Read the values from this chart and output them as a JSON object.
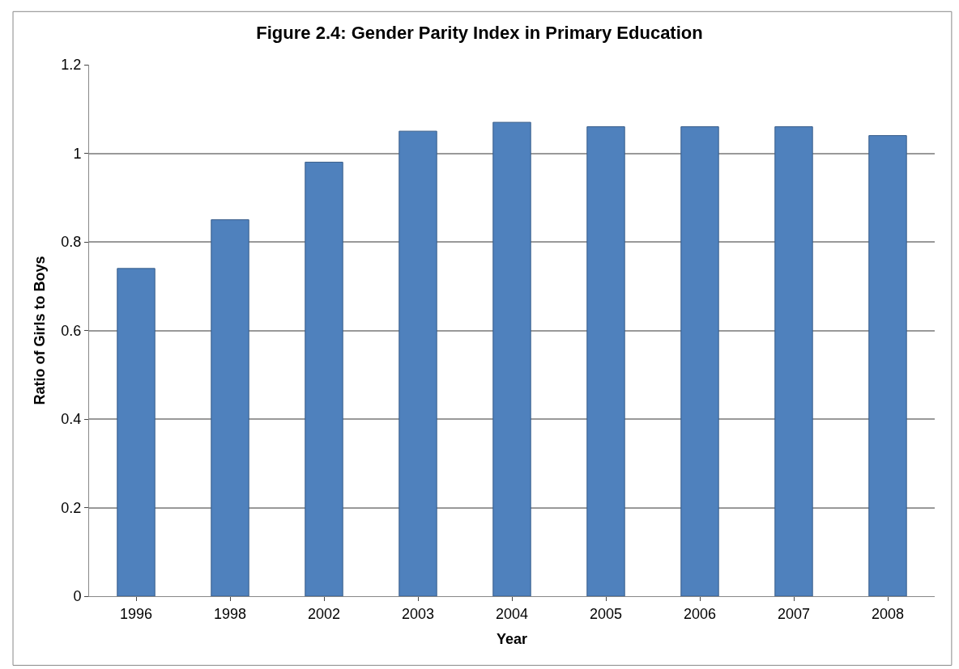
{
  "chart_data": {
    "type": "bar",
    "title": "Figure 2.4: Gender Parity Index in Primary Education",
    "xlabel": "Year",
    "ylabel": "Ratio of Girls to Boys",
    "categories": [
      "1996",
      "1998",
      "2002",
      "2003",
      "2004",
      "2005",
      "2006",
      "2007",
      "2008"
    ],
    "values": [
      0.74,
      0.85,
      0.98,
      1.05,
      1.07,
      1.06,
      1.06,
      1.06,
      1.04
    ],
    "color": "#4f81bd",
    "ylim": [
      0,
      1.2
    ],
    "yticks": [
      0,
      0.2,
      0.4,
      0.6,
      0.8,
      1,
      1.2
    ],
    "grid": "y"
  }
}
